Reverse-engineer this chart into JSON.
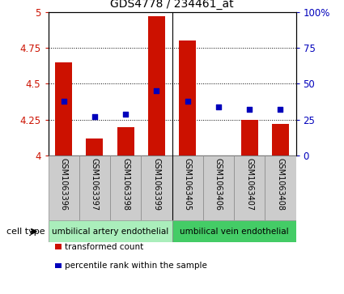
{
  "title": "GDS4778 / 234461_at",
  "samples": [
    "GSM1063396",
    "GSM1063397",
    "GSM1063398",
    "GSM1063399",
    "GSM1063405",
    "GSM1063406",
    "GSM1063407",
    "GSM1063408"
  ],
  "bar_values": [
    4.65,
    4.12,
    4.2,
    4.97,
    4.8,
    4.0,
    4.25,
    4.22
  ],
  "dot_values": [
    4.38,
    4.27,
    4.29,
    4.45,
    4.38,
    4.34,
    4.32,
    4.32
  ],
  "ylim": [
    4.0,
    5.0
  ],
  "yticks": [
    4.0,
    4.25,
    4.5,
    4.75,
    5.0
  ],
  "ytick_labels": [
    "4",
    "4.25",
    "4.5",
    "4.75",
    "5"
  ],
  "right_yticks_pct": [
    0,
    25,
    50,
    75,
    100
  ],
  "right_ytick_labels": [
    "0",
    "25",
    "50",
    "75",
    "100%"
  ],
  "bar_color": "#cc1100",
  "dot_color": "#0000bb",
  "cell_type_groups": [
    {
      "label": "umbilical artery endothelial",
      "indices": [
        0,
        1,
        2,
        3
      ],
      "color": "#aaeebb"
    },
    {
      "label": "umbilical vein endothelial",
      "indices": [
        4,
        5,
        6,
        7
      ],
      "color": "#44cc66"
    }
  ],
  "cell_type_label": "cell type",
  "legend_items": [
    {
      "label": "transformed count",
      "color": "#cc1100"
    },
    {
      "label": "percentile rank within the sample",
      "color": "#0000bb"
    }
  ],
  "bar_width": 0.55
}
